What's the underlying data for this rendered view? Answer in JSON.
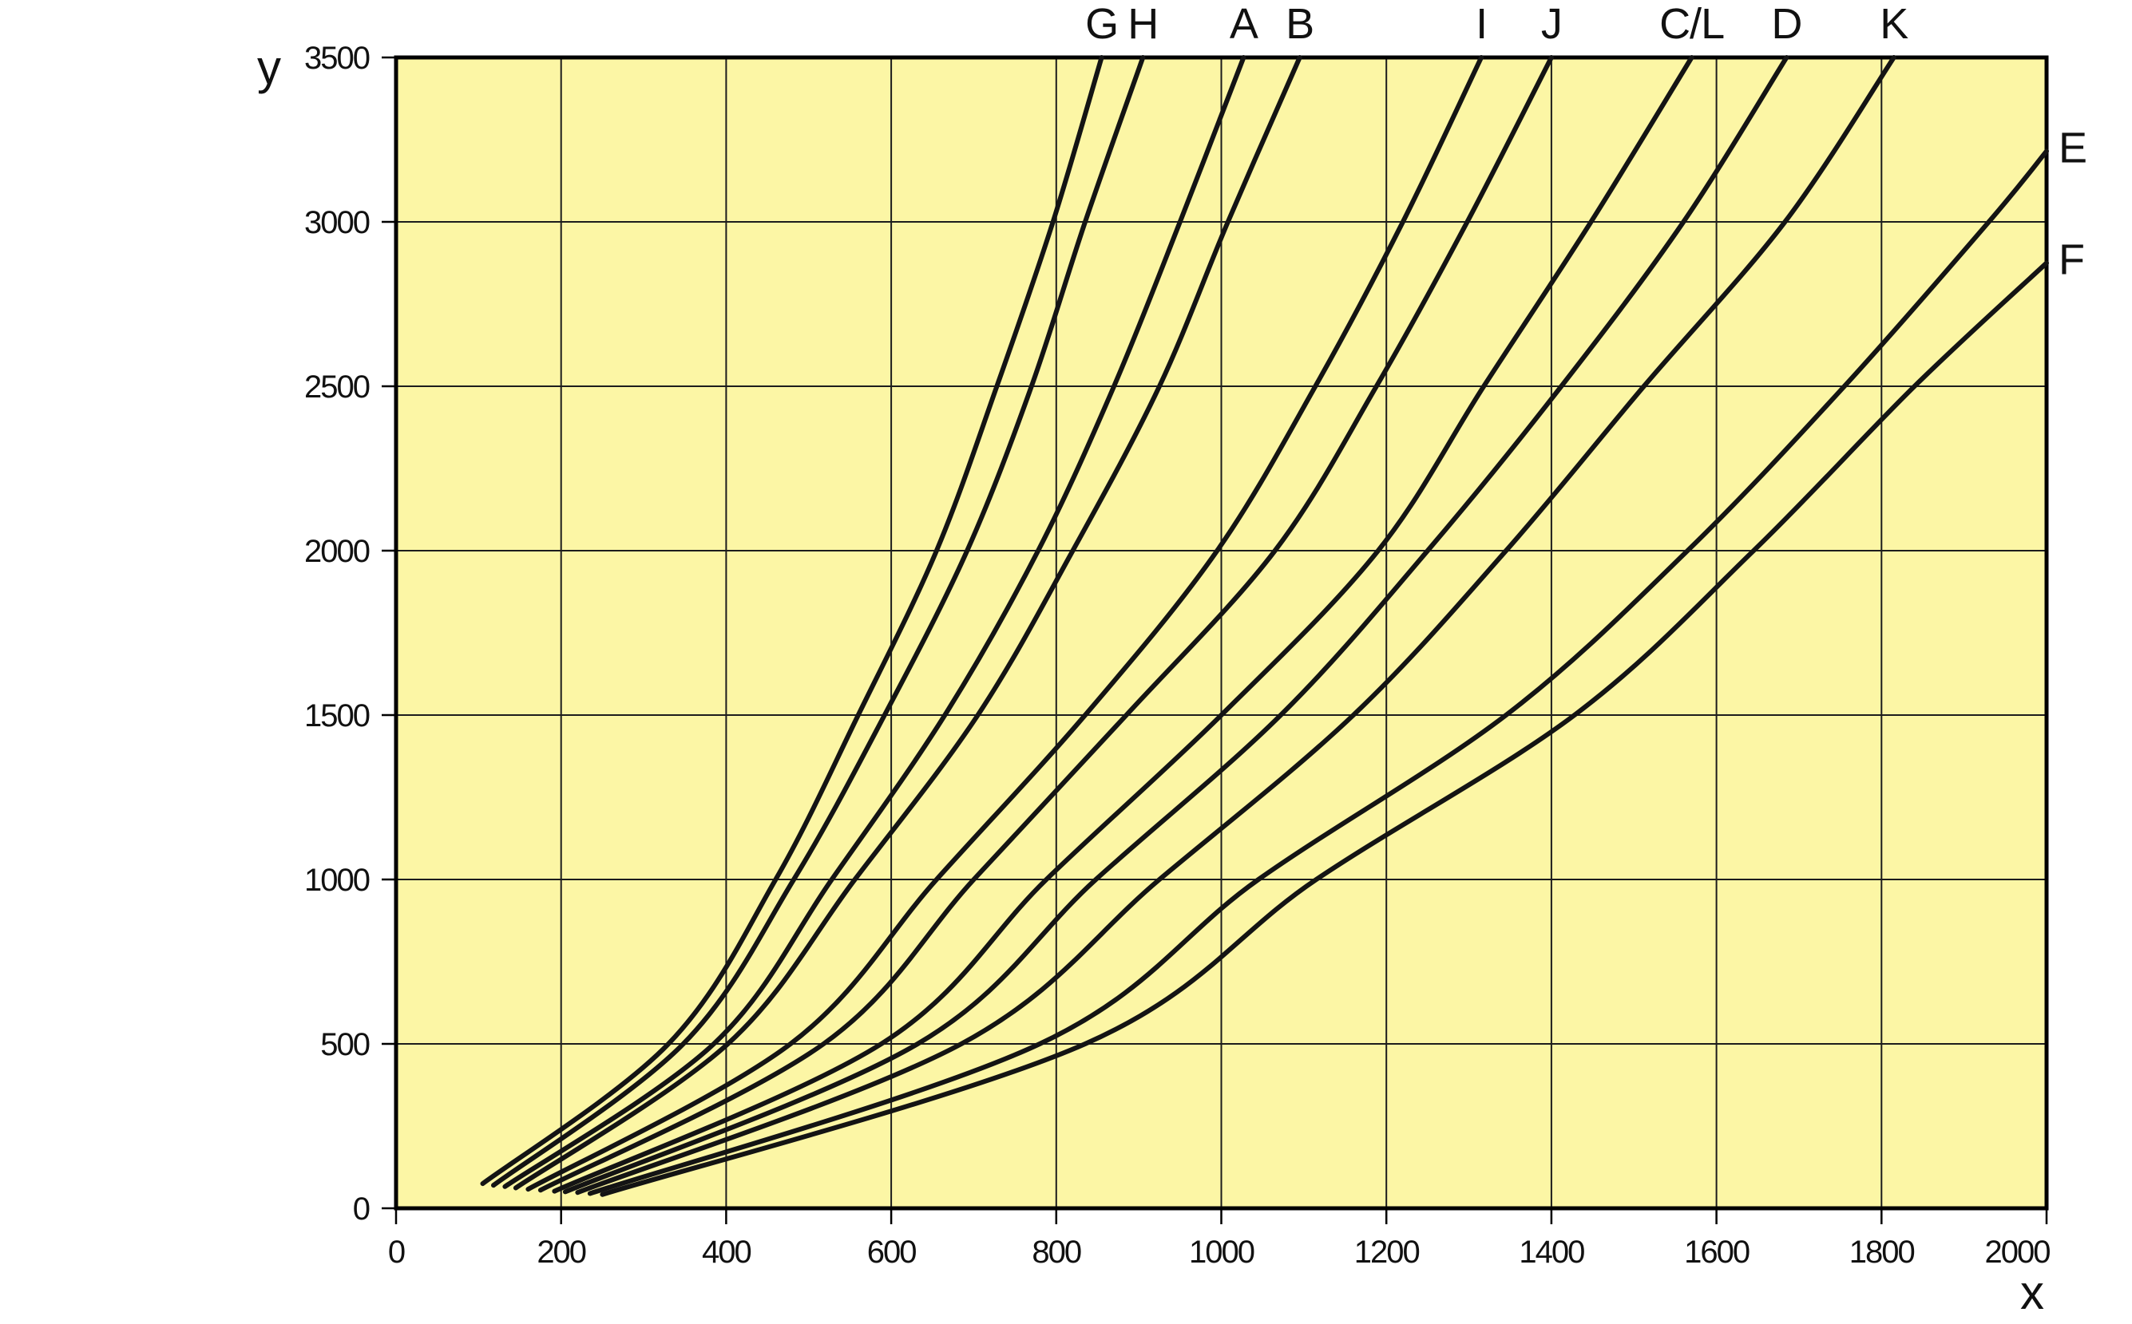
{
  "figure": {
    "background": "#ffffff",
    "plot_background": "#FCF6A5",
    "grid_color": "#1c1c1c",
    "axis_color": "#000000",
    "curve_color": "#141414",
    "text_color": "#111111"
  },
  "chart_data": {
    "type": "line",
    "title": "",
    "xlabel": "x",
    "ylabel": "y",
    "xlim": [
      0,
      2000
    ],
    "ylim": [
      0,
      3500
    ],
    "xticks": [
      0,
      200,
      400,
      600,
      800,
      1000,
      1200,
      1400,
      1600,
      1800,
      2000
    ],
    "yticks": [
      0,
      500,
      1000,
      1500,
      2000,
      2500,
      3000,
      3500
    ],
    "grid": true,
    "legend_position": "curve-end-labels",
    "series": [
      {
        "name": "G",
        "label_side": "top",
        "points": [
          [
            105,
            75
          ],
          [
            330,
            500
          ],
          [
            460,
            1000
          ],
          [
            560,
            1500
          ],
          [
            655,
            2000
          ],
          [
            728,
            2500
          ],
          [
            796,
            3000
          ],
          [
            855,
            3500
          ]
        ]
      },
      {
        "name": "H",
        "label_side": "top",
        "points": [
          [
            118,
            70
          ],
          [
            348,
            500
          ],
          [
            482,
            1000
          ],
          [
            592,
            1500
          ],
          [
            692,
            2000
          ],
          [
            770,
            2500
          ],
          [
            835,
            3000
          ],
          [
            905,
            3500
          ]
        ]
      },
      {
        "name": "A",
        "label_side": "top",
        "points": [
          [
            132,
            66
          ],
          [
            385,
            500
          ],
          [
            528,
            1000
          ],
          [
            665,
            1500
          ],
          [
            778,
            2000
          ],
          [
            870,
            2500
          ],
          [
            950,
            3000
          ],
          [
            1027,
            3500
          ]
        ]
      },
      {
        "name": "B",
        "label_side": "top",
        "points": [
          [
            145,
            62
          ],
          [
            402,
            500
          ],
          [
            556,
            1000
          ],
          [
            705,
            1500
          ],
          [
            820,
            2000
          ],
          [
            925,
            2500
          ],
          [
            1008,
            3000
          ],
          [
            1095,
            3500
          ]
        ]
      },
      {
        "name": "I",
        "label_side": "top",
        "points": [
          [
            160,
            58
          ],
          [
            478,
            500
          ],
          [
            655,
            1000
          ],
          [
            835,
            1500
          ],
          [
            995,
            2000
          ],
          [
            1114,
            2500
          ],
          [
            1220,
            3000
          ],
          [
            1315,
            3500
          ]
        ]
      },
      {
        "name": "J",
        "label_side": "top",
        "points": [
          [
            175,
            55
          ],
          [
            518,
            500
          ],
          [
            700,
            1000
          ],
          [
            885,
            1500
          ],
          [
            1065,
            2000
          ],
          [
            1188,
            2500
          ],
          [
            1298,
            3000
          ],
          [
            1400,
            3500
          ]
        ]
      },
      {
        "name": "C/L",
        "label_side": "top",
        "points": [
          [
            192,
            52
          ],
          [
            588,
            500
          ],
          [
            788,
            1000
          ],
          [
            1000,
            1500
          ],
          [
            1190,
            2000
          ],
          [
            1318,
            2500
          ],
          [
            1448,
            3000
          ],
          [
            1570,
            3500
          ]
        ]
      },
      {
        "name": "D",
        "label_side": "top",
        "points": [
          [
            205,
            50
          ],
          [
            632,
            500
          ],
          [
            848,
            1000
          ],
          [
            1072,
            1500
          ],
          [
            1250,
            2000
          ],
          [
            1412,
            2500
          ],
          [
            1560,
            3000
          ],
          [
            1685,
            3500
          ]
        ]
      },
      {
        "name": "K",
        "label_side": "top",
        "points": [
          [
            220,
            48
          ],
          [
            685,
            500
          ],
          [
            925,
            1000
          ],
          [
            1160,
            1500
          ],
          [
            1345,
            2000
          ],
          [
            1512,
            2500
          ],
          [
            1683,
            3000
          ],
          [
            1815,
            3500
          ]
        ]
      },
      {
        "name": "E",
        "label_side": "right",
        "points": [
          [
            235,
            45
          ],
          [
            780,
            500
          ],
          [
            1045,
            1000
          ],
          [
            1345,
            1500
          ],
          [
            1565,
            2000
          ],
          [
            1755,
            2500
          ],
          [
            1930,
            3000
          ],
          [
            2000,
            3215
          ]
        ]
      },
      {
        "name": "F",
        "label_side": "right",
        "points": [
          [
            250,
            42
          ],
          [
            835,
            500
          ],
          [
            1115,
            1000
          ],
          [
            1428,
            1500
          ],
          [
            1645,
            2000
          ],
          [
            1840,
            2500
          ],
          [
            2000,
            2875
          ]
        ]
      }
    ]
  }
}
